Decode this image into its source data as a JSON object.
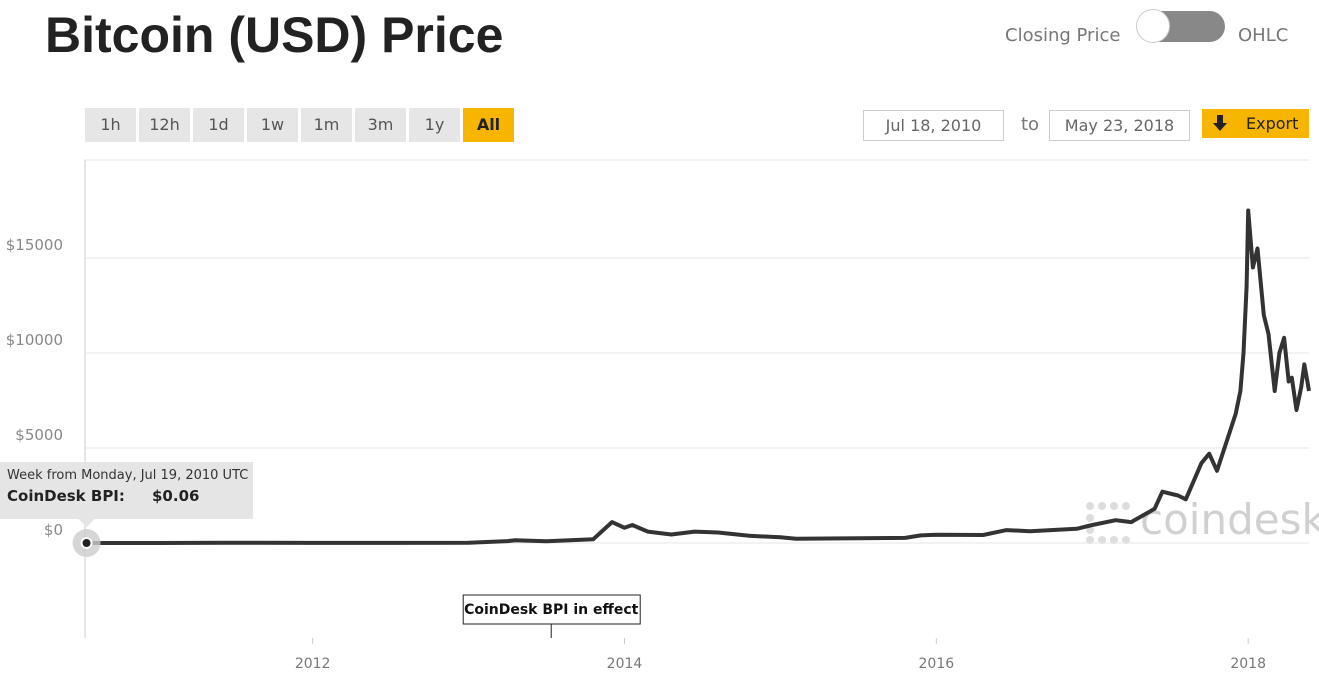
{
  "header": {
    "title": "Bitcoin (USD) Price"
  },
  "toggle": {
    "left": "Closing Price",
    "right": "OHLC"
  },
  "range_buttons": [
    "1h",
    "12h",
    "1d",
    "1w",
    "1m",
    "3m",
    "1y",
    "All"
  ],
  "active_range_index": 7,
  "date_range": {
    "from": "Jul 18, 2010",
    "to_label": "to",
    "to": "May 23, 2018"
  },
  "export": "Export",
  "tooltip": {
    "heading": "Week from Monday, Jul 19, 2010 UTC",
    "label": "CoinDesk BPI:",
    "value": "$0.06"
  },
  "watermark": "coindesk",
  "chart_data": {
    "type": "line",
    "x": [
      2010.55,
      2011.0,
      2011.45,
      2012.0,
      2012.5,
      2013.0,
      2013.25,
      2013.3,
      2013.5,
      2013.8,
      2013.92,
      2014.0,
      2014.05,
      2014.15,
      2014.3,
      2014.45,
      2014.6,
      2014.8,
      2015.0,
      2015.1,
      2015.4,
      2015.8,
      2015.9,
      2016.0,
      2016.3,
      2016.45,
      2016.6,
      2016.9,
      2017.0,
      2017.15,
      2017.25,
      2017.4,
      2017.45,
      2017.55,
      2017.6,
      2017.7,
      2017.75,
      2017.8,
      2017.88,
      2017.92,
      2017.95,
      2017.97,
      2017.99,
      2018.0,
      2018.03,
      2018.06,
      2018.1,
      2018.13,
      2018.17,
      2018.2,
      2018.23,
      2018.26,
      2018.28,
      2018.31,
      2018.34,
      2018.36,
      2018.38,
      2018.39
    ],
    "series": [
      {
        "name": "CoinDesk BPI",
        "color": "#333333",
        "values": [
          0.06,
          0.3,
          17,
          5,
          7,
          13,
          100,
          140,
          90,
          200,
          1100,
          800,
          950,
          600,
          450,
          600,
          550,
          380,
          300,
          220,
          240,
          270,
          400,
          430,
          420,
          680,
          620,
          750,
          950,
          1200,
          1100,
          1800,
          2700,
          2500,
          2300,
          4200,
          4700,
          3800,
          5800,
          6800,
          8000,
          10000,
          13500,
          17500,
          14500,
          15500,
          12000,
          11000,
          8000,
          10000,
          10800,
          8500,
          8700,
          7000,
          8200,
          9400,
          8500,
          8000
        ]
      }
    ],
    "xlim": [
      2010.54,
      2018.39
    ],
    "xticks": [
      2012,
      2014,
      2016,
      2018
    ],
    "ylim": [
      -5000,
      20000
    ],
    "yticks": [
      {
        "value": 0,
        "label": "$0"
      },
      {
        "value": 5000,
        "label": "$5000"
      },
      {
        "value": 10000,
        "label": "$10000"
      },
      {
        "value": 15000,
        "label": "$15000"
      }
    ],
    "grid": true,
    "annotation": {
      "text": "CoinDesk BPI in effect",
      "x": 2013.53
    }
  }
}
